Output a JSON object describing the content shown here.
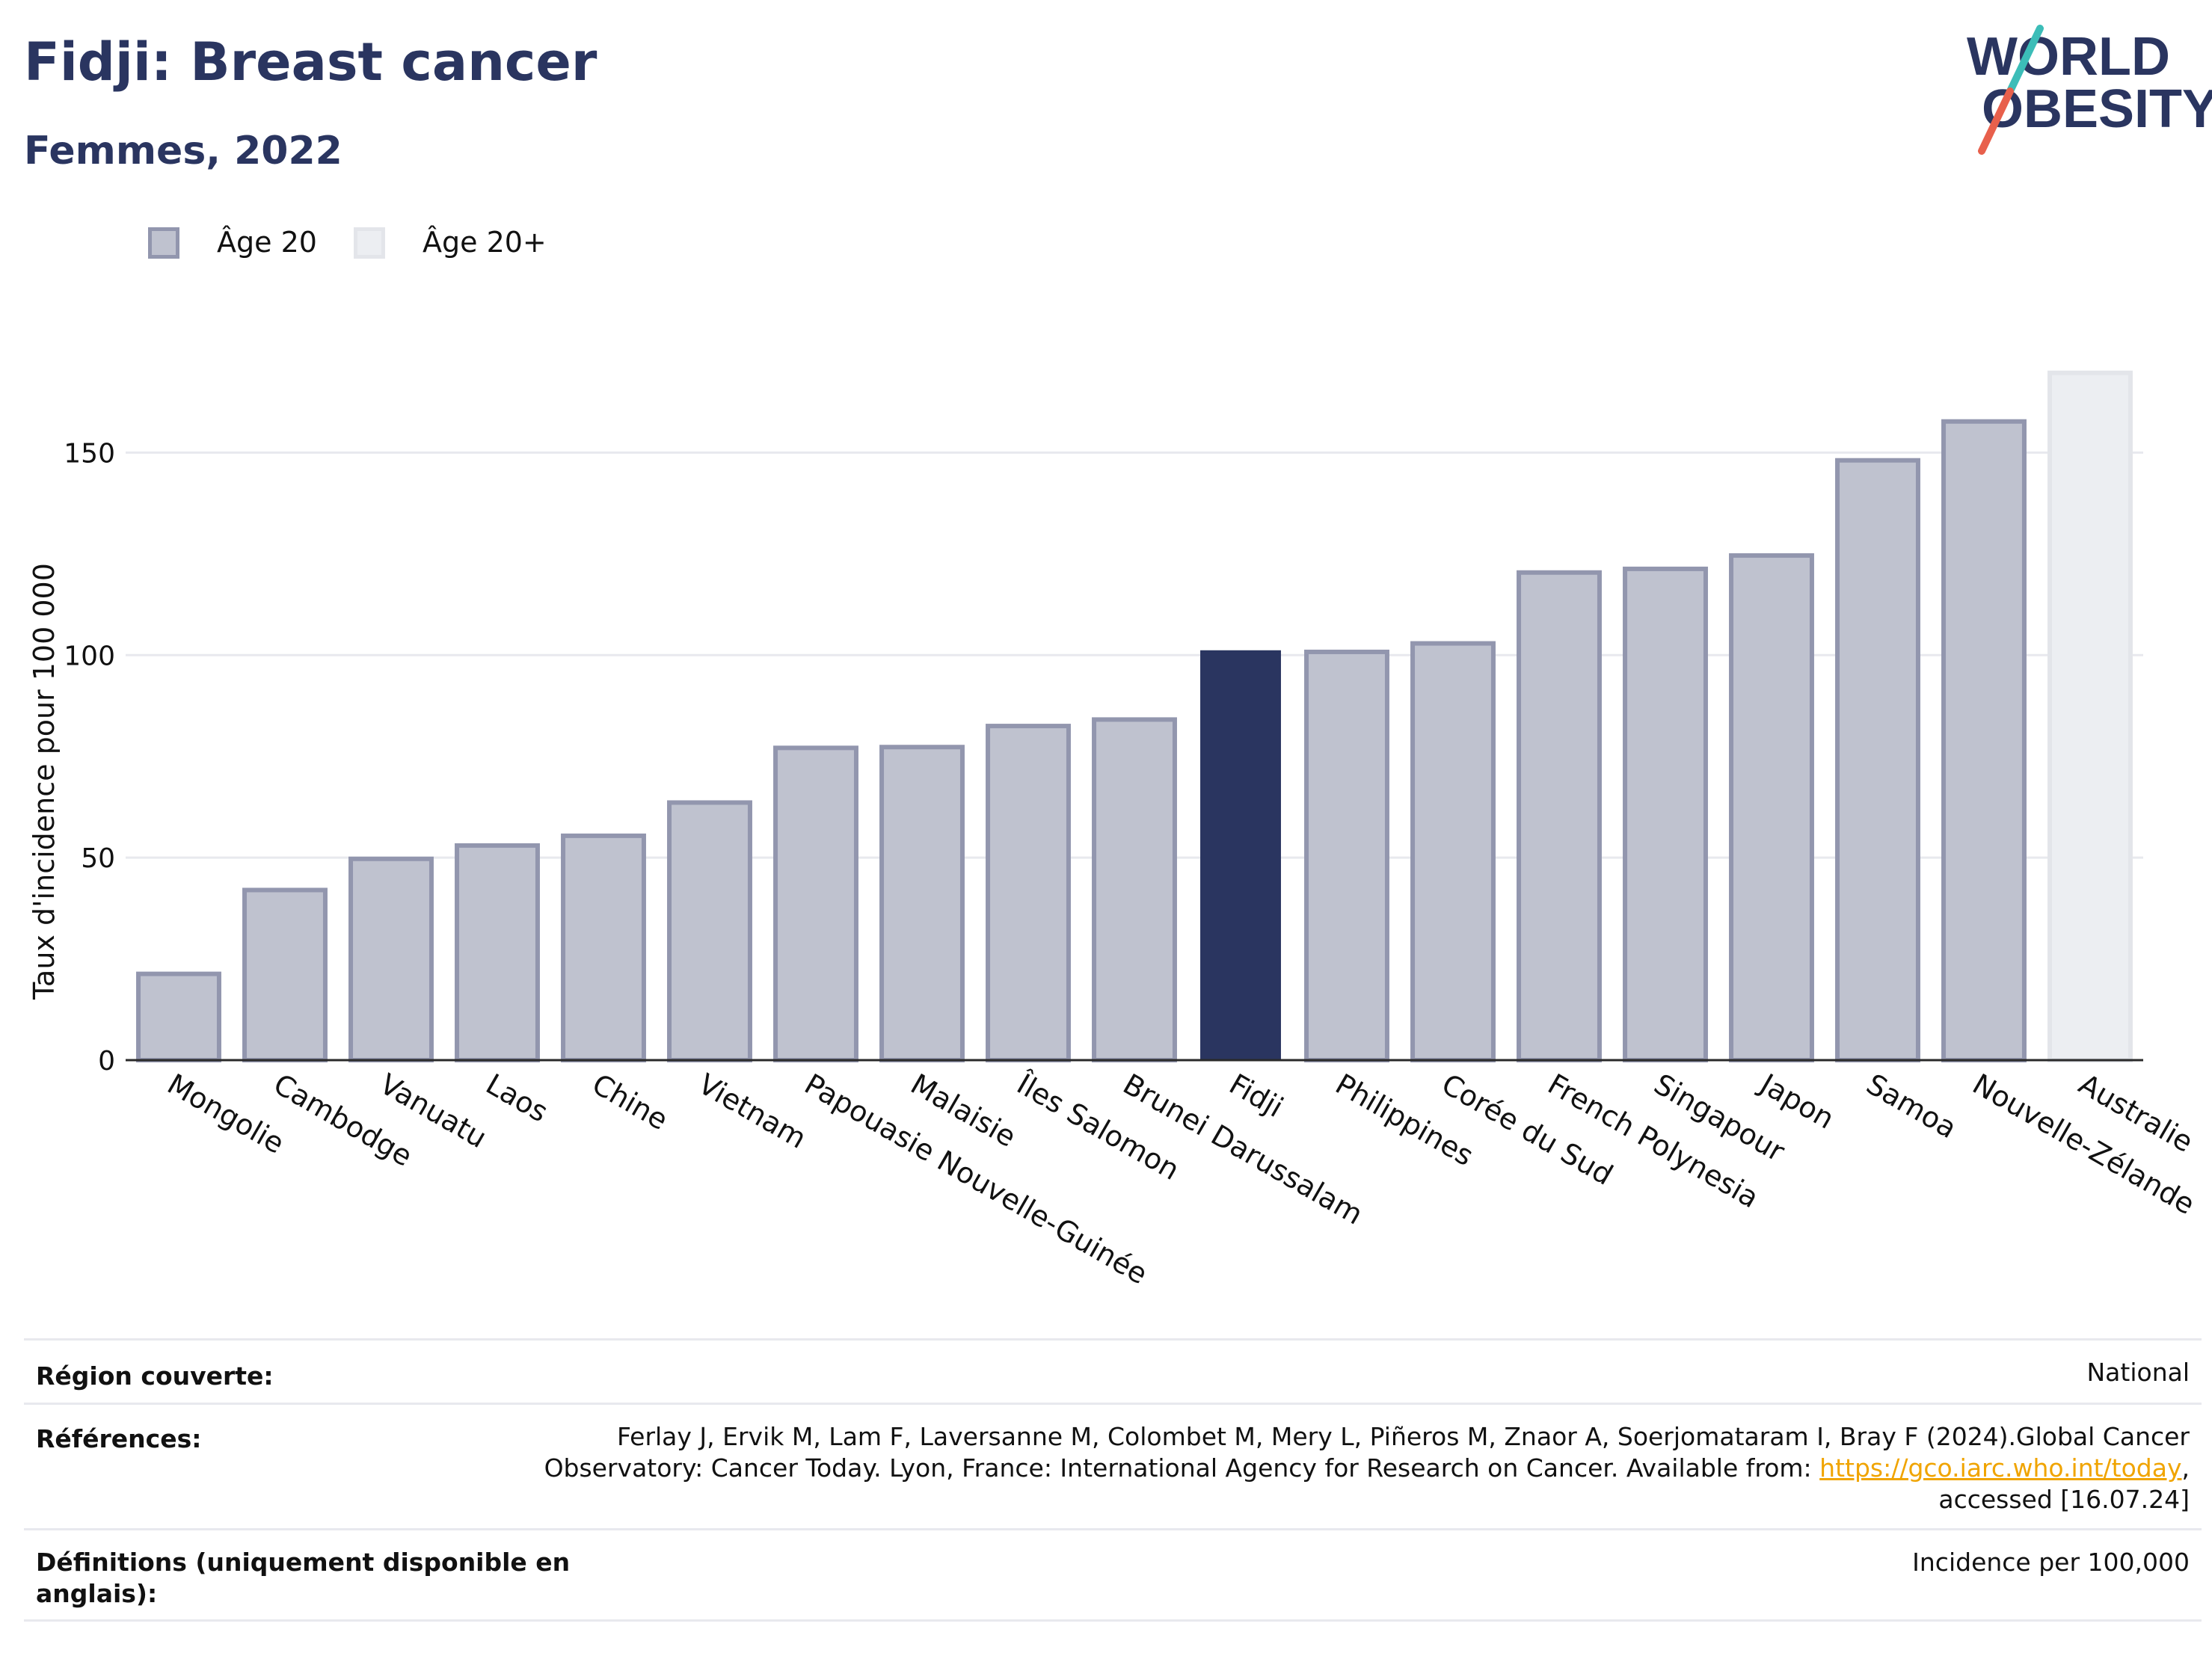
{
  "header": {
    "title": "Fidji: Breast cancer",
    "subtitle": "Femmes, 2022"
  },
  "logo": {
    "line1": "WORLD",
    "line2": "OBESITY",
    "colors": {
      "text": "#2a3560",
      "slash_teal": "#3cbdb8",
      "slash_red": "#e8604c"
    }
  },
  "legend": [
    {
      "label": "Âge 20",
      "color": "#bfc2cf",
      "border": "#9296ae"
    },
    {
      "label": "Âge 20+",
      "color": "#eceef2",
      "border": "#e3e5ea"
    }
  ],
  "colors": {
    "highlight": "#2a3560",
    "bar_age20": "#bfc2cf",
    "bar_age20_border": "#9296ae",
    "bar_age20plus": "#eceef2",
    "bar_age20plus_border": "#e3e5ea",
    "grid": "#e8e9ee",
    "axis": "#2a2a2a"
  },
  "chart_data": {
    "type": "bar",
    "title": "Fidji: Breast cancer",
    "subtitle": "Femmes, 2022",
    "xlabel": "",
    "ylabel": "Taux d'incidence pour 100 000",
    "ylim": [
      0,
      175
    ],
    "yticks": [
      0,
      50,
      100,
      150
    ],
    "grid": true,
    "legend_position": "top-left",
    "highlight": "Fidji",
    "categories": [
      "Mongolie",
      "Cambodge",
      "Vanuatu",
      "Laos",
      "Chine",
      "Vietnam",
      "Papouasie Nouvelle-Guinée",
      "Malaisie",
      "Îles Salomon",
      "Brunei Darussalam",
      "Fidji",
      "Philippines",
      "Corée du Sud",
      "French Polynesia",
      "Singapour",
      "Japon",
      "Samoa",
      "Nouvelle-Zélande",
      "Australie"
    ],
    "values": [
      21.3,
      42.0,
      49.7,
      53.0,
      55.4,
      63.6,
      77.1,
      77.3,
      82.5,
      84.1,
      101.2,
      100.8,
      102.9,
      120.4,
      121.3,
      124.6,
      148.1,
      157.7,
      169.7
    ],
    "series_group": [
      "Âge 20",
      "Âge 20",
      "Âge 20",
      "Âge 20",
      "Âge 20",
      "Âge 20",
      "Âge 20",
      "Âge 20",
      "Âge 20",
      "Âge 20",
      "Âge 20",
      "Âge 20",
      "Âge 20",
      "Âge 20",
      "Âge 20",
      "Âge 20",
      "Âge 20",
      "Âge 20",
      "Âge 20+"
    ]
  },
  "footer": {
    "region_label": "Région couverte:",
    "region_value": "National",
    "references_label": "Références:",
    "references_text_1": "Ferlay J, Ervik M, Lam F, Laversanne M, Colombet M, Mery L, Piñeros M, Znaor A, Soerjomataram I, Bray F (2024).Global Cancer",
    "references_text_2": "Observatory: Cancer Today. Lyon, France: International Agency for Research on Cancer. Available from: ",
    "references_link": "https://gco.iarc.who.int/today",
    "references_text_3": ",",
    "references_text_4": "accessed [16.07.24]",
    "definitions_label_1": "Définitions (uniquement disponible en",
    "definitions_label_2": "anglais):",
    "definitions_value": "Incidence per 100,000"
  }
}
